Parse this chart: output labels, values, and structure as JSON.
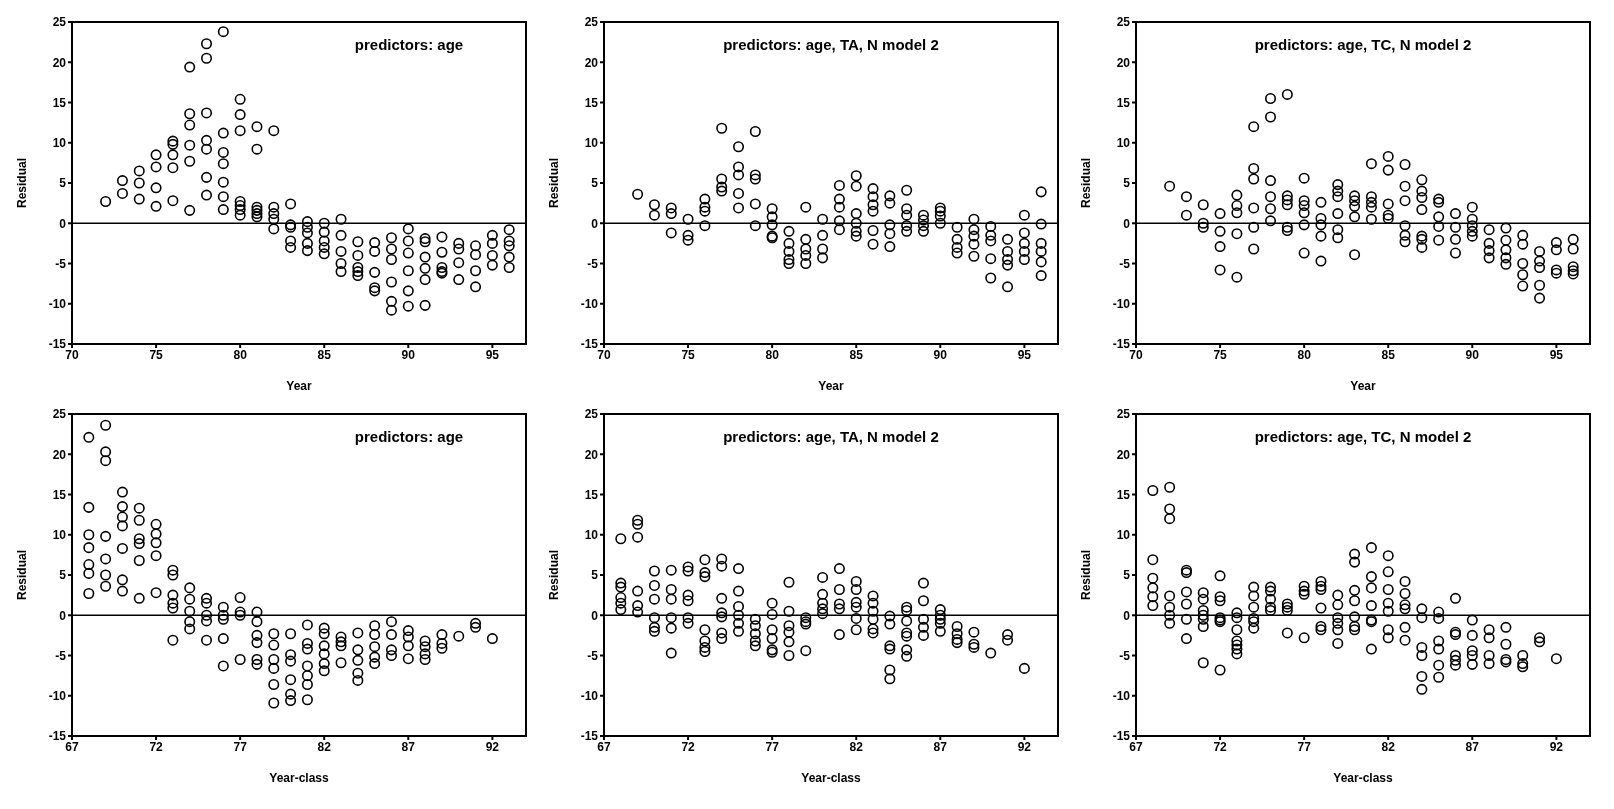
{
  "chart_data": [
    {
      "type": "scatter",
      "annotations": [
        "predictors: age"
      ],
      "xlabel": "Year",
      "ylabel": "Residual",
      "color": "#000000",
      "marker": "circle",
      "xlim": [
        70,
        97
      ],
      "xticks": [
        70,
        75,
        80,
        85,
        90,
        95
      ],
      "ylim": [
        -15,
        25
      ],
      "yticks": [
        -15,
        -10,
        -5,
        0,
        5,
        10,
        15,
        20,
        25
      ],
      "ref_lines": [
        {
          "axis": "y",
          "value": 0
        }
      ],
      "x": [
        72,
        73,
        73,
        74,
        74,
        74,
        75,
        75,
        75,
        75,
        76,
        76,
        76,
        76,
        76,
        77,
        77,
        77,
        77,
        77,
        77,
        78,
        78,
        78,
        78,
        78,
        78,
        78,
        79,
        79,
        79,
        79,
        79,
        79,
        79,
        80,
        80,
        80,
        80,
        80,
        80,
        80,
        81,
        81,
        81,
        81,
        81,
        81,
        82,
        82,
        82,
        82,
        82,
        83,
        83,
        83,
        83,
        83,
        84,
        84,
        84,
        84,
        84,
        85,
        85,
        85,
        85,
        85,
        86,
        86,
        86,
        86,
        86,
        87,
        87,
        87,
        87,
        87,
        88,
        88,
        88,
        88,
        88,
        89,
        89,
        89,
        89,
        89,
        89,
        90,
        90,
        90,
        90,
        90,
        90,
        91,
        91,
        91,
        91,
        91,
        91,
        92,
        92,
        92,
        92,
        92,
        93,
        93,
        93,
        93,
        94,
        94,
        94,
        94,
        95,
        95,
        95,
        95,
        96,
        96,
        96,
        96,
        96
      ],
      "values": [
        2.7,
        5.3,
        3.7,
        6.5,
        5,
        3,
        8.5,
        7,
        4.4,
        2.1,
        10.2,
        9.8,
        8.5,
        6.9,
        2.8,
        19.4,
        13.6,
        12.2,
        9.7,
        7.7,
        1.6,
        22.3,
        20.5,
        13.7,
        10.3,
        9.2,
        5.7,
        3.5,
        23.8,
        11.2,
        8.8,
        7.4,
        5.1,
        3.3,
        1.7,
        15.4,
        13.5,
        11.5,
        2.7,
        2.2,
        1.7,
        1,
        12,
        9.2,
        2,
        1.6,
        1.2,
        0.8,
        11.5,
        2,
        1.2,
        0.5,
        -0.7,
        2.4,
        -0.2,
        -0.5,
        -2.2,
        -3,
        0.2,
        -0.5,
        -1.2,
        -2.5,
        -3.4,
        0,
        -1.1,
        -2.2,
        -3,
        -3.8,
        0.5,
        -1.5,
        -3.5,
        -5,
        -6,
        -2.3,
        -4,
        -5.5,
        -6,
        -6.5,
        -2.4,
        -3.5,
        -6.1,
        -8,
        -8.4,
        -1.8,
        -3.2,
        -4.5,
        -7.3,
        -9.7,
        -10.8,
        -0.7,
        -2.2,
        -3.7,
        -5.9,
        -8.4,
        -10.3,
        -1.9,
        -2.3,
        -4.2,
        -5.6,
        -7,
        -10.2,
        -1.7,
        -3.6,
        -5.5,
        -6,
        -6.2,
        -2.5,
        -3.2,
        -4.9,
        -7,
        -2.8,
        -3.9,
        -5.9,
        -7.9,
        -1.5,
        -2.5,
        -4,
        -5.2,
        -0.8,
        -2.2,
        -2.8,
        -4.2,
        -5.5
      ]
    },
    {
      "type": "scatter",
      "annotations": [
        "predictors: age, TA, N  model 2"
      ],
      "xlabel": "Year",
      "ylabel": "Residual",
      "color": "#000000",
      "marker": "circle",
      "xlim": [
        70,
        97
      ],
      "xticks": [
        70,
        75,
        80,
        85,
        90,
        95
      ],
      "ylim": [
        -15,
        25
      ],
      "yticks": [
        -15,
        -10,
        -5,
        0,
        5,
        10,
        15,
        20,
        25
      ],
      "ref_lines": [
        {
          "axis": "y",
          "value": 0
        }
      ],
      "x": [
        72,
        73,
        73,
        74,
        74,
        74,
        75,
        75,
        75,
        76,
        76,
        76,
        76,
        77,
        77,
        77,
        77,
        78,
        78,
        78,
        78,
        78,
        79,
        79,
        79,
        79,
        79,
        80,
        80,
        80,
        80,
        80,
        81,
        81,
        81,
        81,
        81,
        82,
        82,
        82,
        82,
        82,
        83,
        83,
        83,
        83,
        84,
        84,
        84,
        84,
        84,
        85,
        85,
        85,
        85,
        85,
        85,
        86,
        86,
        86,
        86,
        86,
        86,
        87,
        87,
        87,
        87,
        87,
        88,
        88,
        88,
        88,
        88,
        89,
        89,
        89,
        89,
        90,
        90,
        90,
        90,
        91,
        91,
        91,
        91,
        92,
        92,
        92,
        92,
        92,
        93,
        93,
        93,
        93,
        93,
        94,
        94,
        94,
        94,
        94,
        95,
        95,
        95,
        95,
        95,
        96,
        96,
        96,
        96,
        96,
        96
      ],
      "values": [
        3.6,
        2.3,
        1,
        1.9,
        1.2,
        -1.2,
        0.5,
        -1.5,
        -2.1,
        3,
        2,
        1.5,
        -0.3,
        11.8,
        5.5,
        4.5,
        4,
        9.5,
        7,
        6,
        3.7,
        1.9,
        11.4,
        6,
        5.5,
        2.4,
        -0.3,
        1.8,
        0.8,
        -0.2,
        -1.6,
        -1.8,
        -1,
        -2.5,
        -3.5,
        -4.5,
        -5,
        2,
        -2,
        -3.2,
        -4,
        -5,
        0.5,
        -1.5,
        -3.2,
        -4.3,
        4.7,
        3,
        2,
        0.3,
        -0.8,
        5.9,
        4.6,
        1.2,
        0,
        -1,
        -1.6,
        4.3,
        3.3,
        2.3,
        1.5,
        -0.9,
        -2.6,
        3.4,
        2.5,
        -0.2,
        -1.3,
        -2.9,
        4.1,
        1.8,
        1,
        -0.3,
        -1,
        1,
        0.4,
        -0.3,
        -1,
        1.9,
        1.5,
        0.9,
        0,
        -0.5,
        -2,
        -3,
        -3.7,
        0.5,
        -0.8,
        -1.6,
        -2.6,
        -4.1,
        -0.4,
        -1.5,
        -2.2,
        -4.4,
        -6.8,
        -2,
        -3.5,
        -4.5,
        -5.2,
        -7.9,
        1,
        -1.2,
        -2.5,
        -3.5,
        -4.5,
        3.9,
        -0.1,
        -2.5,
        -3.5,
        -4.8,
        -6.5
      ]
    },
    {
      "type": "scatter",
      "annotations": [
        "predictors: age, TC, N  model 2"
      ],
      "xlabel": "Year",
      "ylabel": "Residual",
      "color": "#000000",
      "marker": "circle",
      "xlim": [
        70,
        97
      ],
      "xticks": [
        70,
        75,
        80,
        85,
        90,
        95
      ],
      "ylim": [
        -15,
        25
      ],
      "yticks": [
        -15,
        -10,
        -5,
        0,
        5,
        10,
        15,
        20,
        25
      ],
      "ref_lines": [
        {
          "axis": "y",
          "value": 0
        }
      ],
      "x": [
        72,
        73,
        73,
        74,
        74,
        74,
        75,
        75,
        75,
        75,
        76,
        76,
        76,
        76,
        76,
        77,
        77,
        77,
        77,
        77,
        77,
        78,
        78,
        78,
        78,
        78,
        78,
        79,
        79,
        79,
        79,
        79,
        79,
        80,
        80,
        80,
        80,
        80,
        80,
        81,
        81,
        81,
        81,
        81,
        82,
        82,
        82,
        82,
        82,
        82,
        83,
        83,
        83,
        83,
        83,
        84,
        84,
        84,
        84,
        84,
        85,
        85,
        85,
        85,
        85,
        86,
        86,
        86,
        86,
        86,
        86,
        87,
        87,
        87,
        87,
        87,
        87,
        87,
        88,
        88,
        88,
        88,
        88,
        89,
        89,
        89,
        89,
        90,
        90,
        90,
        90,
        90,
        91,
        91,
        91,
        91,
        92,
        92,
        92,
        92,
        92,
        93,
        93,
        93,
        93,
        93,
        94,
        94,
        94,
        94,
        94,
        95,
        95,
        95,
        95,
        96,
        96,
        96,
        96,
        96
      ],
      "values": [
        4.6,
        3.3,
        1,
        2.3,
        0,
        -0.5,
        1.2,
        -1,
        -2.9,
        -5.8,
        3.5,
        2.2,
        1.3,
        -1.3,
        -6.7,
        12,
        6.8,
        5.5,
        1.9,
        -0.5,
        -3.2,
        15.5,
        13.2,
        5.3,
        3.3,
        1.8,
        0.3,
        16,
        3.4,
        2.9,
        2.3,
        -0.5,
        -0.9,
        5.6,
        2.8,
        2.2,
        1.3,
        -0.2,
        -3.7,
        2.6,
        0.6,
        -0.2,
        -1.6,
        -4.7,
        4.8,
        4,
        3.3,
        1.2,
        -0.8,
        -1.8,
        3.4,
        2.8,
        2.1,
        0.8,
        -3.9,
        7.4,
        3.3,
        2.6,
        2,
        0.5,
        8.3,
        6.6,
        2.4,
        1,
        0.6,
        7.3,
        4.6,
        2.8,
        -0.3,
        -1.5,
        -2.3,
        5.4,
        4,
        3.2,
        1.7,
        -1.6,
        -2,
        -3,
        3,
        2.6,
        0.8,
        -0.4,
        -2.1,
        1.2,
        -0.5,
        -2,
        -3.7,
        2,
        0.5,
        -0.3,
        -1,
        -1.6,
        -0.8,
        -2.5,
        -3.4,
        -4.3,
        -0.6,
        -2.1,
        -3.3,
        -4.3,
        -5.1,
        -1.5,
        -2.6,
        -5,
        -6.4,
        -7.8,
        -3.5,
        -4.7,
        -5.5,
        -7.7,
        -9.3,
        -2.4,
        -3.3,
        -5.8,
        -6.2,
        -2,
        -3.2,
        -5.4,
        -5.9,
        -6.3
      ]
    },
    {
      "type": "scatter",
      "annotations": [
        "predictors: age"
      ],
      "xlabel": "Year-class",
      "ylabel": "Residual",
      "color": "#000000",
      "marker": "circle",
      "xlim": [
        67,
        94
      ],
      "xticks": [
        67,
        72,
        77,
        82,
        87,
        92
      ],
      "ylim": [
        -15,
        25
      ],
      "yticks": [
        -15,
        -10,
        -5,
        0,
        5,
        10,
        15,
        20,
        25
      ],
      "ref_lines": [
        {
          "axis": "y",
          "value": 0
        }
      ],
      "x": [
        68,
        68,
        68,
        68,
        68,
        68,
        68,
        69,
        69,
        69,
        69,
        69,
        69,
        69,
        70,
        70,
        70,
        70,
        70,
        70,
        70,
        71,
        71,
        71,
        71,
        71,
        71,
        72,
        72,
        72,
        72,
        72,
        73,
        73,
        73,
        73,
        73,
        73,
        74,
        74,
        74,
        74,
        74,
        75,
        75,
        75,
        75,
        75,
        76,
        76,
        76,
        76,
        76,
        77,
        77,
        77,
        77,
        78,
        78,
        78,
        78,
        78,
        78,
        79,
        79,
        79,
        79,
        79,
        79,
        80,
        80,
        80,
        80,
        80,
        80,
        81,
        81,
        81,
        81,
        81,
        81,
        81,
        82,
        82,
        82,
        82,
        82,
        82,
        83,
        83,
        83,
        83,
        84,
        84,
        84,
        84,
        84,
        85,
        85,
        85,
        85,
        85,
        86,
        86,
        86,
        86,
        87,
        87,
        87,
        87,
        88,
        88,
        88,
        88,
        89,
        89,
        89,
        90,
        91,
        91,
        92
      ],
      "values": [
        22.1,
        13.4,
        10,
        8.4,
        6.3,
        5.2,
        2.7,
        23.6,
        20.3,
        19.2,
        9.8,
        7,
        5,
        3.6,
        15.3,
        13.5,
        12.2,
        11.1,
        8.3,
        4.4,
        3,
        13.3,
        11.8,
        9.5,
        8.9,
        6.8,
        2.1,
        11.3,
        10.1,
        9,
        7.4,
        2.8,
        5.6,
        5,
        2.5,
        1.5,
        0.9,
        -3.1,
        3.4,
        2,
        0.5,
        -0.8,
        -1.7,
        2.1,
        1.5,
        0,
        -0.7,
        -3.1,
        1,
        0,
        -0.5,
        -2.9,
        -6.3,
        2.2,
        0.4,
        0,
        -5.5,
        0.4,
        -0.8,
        -2.5,
        -3.4,
        -5.5,
        -6.1,
        -2.3,
        -3.7,
        -5.5,
        -6.6,
        -8.6,
        -10.9,
        -2.3,
        -4.9,
        -5.7,
        -8,
        -9.8,
        -10.6,
        -1.2,
        -3.5,
        -4.2,
        -6.3,
        -7.5,
        -8.6,
        -10.5,
        -1.6,
        -2.3,
        -3.8,
        -4.8,
        -6,
        -6.9,
        -2.7,
        -3.3,
        -3.8,
        -5.9,
        -2.2,
        -4.3,
        -5.6,
        -7.2,
        -8.1,
        -1.3,
        -2.4,
        -3.9,
        -5.2,
        -6,
        -0.8,
        -2.4,
        -4.3,
        -5,
        -1.9,
        -2.7,
        -3.8,
        -5.4,
        -3.2,
        -3.9,
        -4.8,
        -5.5,
        -2.4,
        -3.5,
        -4.1,
        -2.6,
        -1,
        -1.5,
        -2.9
      ]
    },
    {
      "type": "scatter",
      "annotations": [
        "predictors: age, TA, N  model 2"
      ],
      "xlabel": "Year-class",
      "ylabel": "Residual",
      "color": "#000000",
      "marker": "circle",
      "xlim": [
        67,
        94
      ],
      "xticks": [
        67,
        72,
        77,
        82,
        87,
        92
      ],
      "ylim": [
        -15,
        25
      ],
      "yticks": [
        -15,
        -10,
        -5,
        0,
        5,
        10,
        15,
        20,
        25
      ],
      "ref_lines": [
        {
          "axis": "y",
          "value": 0
        }
      ],
      "x": [
        68,
        68,
        68,
        68,
        68,
        68,
        69,
        69,
        69,
        69,
        69,
        69,
        70,
        70,
        70,
        70,
        70,
        70,
        71,
        71,
        71,
        71,
        71,
        71,
        72,
        72,
        72,
        72,
        72,
        72,
        73,
        73,
        73,
        73,
        73,
        73,
        73,
        74,
        74,
        74,
        74,
        74,
        74,
        74,
        75,
        75,
        75,
        75,
        75,
        75,
        76,
        76,
        76,
        76,
        76,
        77,
        77,
        77,
        77,
        77,
        77,
        78,
        78,
        78,
        78,
        78,
        78,
        79,
        79,
        79,
        79,
        80,
        80,
        80,
        80,
        80,
        81,
        81,
        81,
        81,
        81,
        82,
        82,
        82,
        82,
        82,
        82,
        83,
        83,
        83,
        83,
        83,
        83,
        84,
        84,
        84,
        84,
        84,
        84,
        85,
        85,
        85,
        85,
        85,
        85,
        85,
        86,
        86,
        86,
        86,
        86,
        87,
        87,
        87,
        87,
        87,
        88,
        88,
        88,
        88,
        89,
        89,
        89,
        90,
        91,
        91,
        92
      ],
      "values": [
        9.5,
        4,
        3.5,
        2.2,
        1.5,
        0.7,
        11.8,
        11.3,
        9.7,
        3,
        1.2,
        0.4,
        5.5,
        3.7,
        2,
        -0.3,
        -1.5,
        -2,
        5.6,
        3.2,
        2,
        -0.3,
        -1.6,
        -4.7,
        6,
        5.5,
        2.5,
        1.8,
        -0.3,
        -1,
        6.9,
        5.3,
        4.8,
        -1.8,
        -3.2,
        -4,
        -4.5,
        7,
        6.1,
        2.1,
        0.3,
        -0.2,
        -2.2,
        -2.9,
        5.8,
        3,
        1.1,
        0,
        -1,
        -2,
        -0.5,
        -1.3,
        -2.3,
        -3.2,
        -3.8,
        1.5,
        0.1,
        -1.8,
        -2.9,
        -4.3,
        -4.6,
        4.1,
        0.5,
        -1.3,
        -2.1,
        -3.3,
        -5,
        -0.3,
        -0.8,
        -1.1,
        -4.4,
        4.7,
        2.6,
        1.5,
        0.8,
        0.2,
        5.8,
        3.2,
        1.4,
        0.8,
        -2.4,
        4.2,
        3.2,
        1.6,
        1,
        -0.4,
        -1.8,
        2.4,
        1.5,
        0.5,
        -0.5,
        -1.7,
        -2.2,
        -0.1,
        -1.1,
        -3.8,
        -4.2,
        -6.8,
        -7.9,
        1,
        0.6,
        -0.7,
        -2.2,
        -2.6,
        -4.3,
        -5.1,
        4,
        1.8,
        -0.5,
        -1.5,
        -2.5,
        0.7,
        0,
        -0.5,
        -1,
        -2,
        -1.4,
        -2.3,
        -3,
        -3.4,
        -2.1,
        -3.6,
        -4,
        -4.7,
        -2.4,
        -3.1,
        -6.6
      ]
    },
    {
      "type": "scatter",
      "annotations": [
        "predictors: age, TC, N  model 2"
      ],
      "xlabel": "Year-class",
      "ylabel": "Residual",
      "color": "#000000",
      "marker": "circle",
      "xlim": [
        67,
        94
      ],
      "xticks": [
        67,
        72,
        77,
        82,
        87,
        92
      ],
      "ylim": [
        -15,
        25
      ],
      "yticks": [
        -15,
        -10,
        -5,
        0,
        5,
        10,
        15,
        20,
        25
      ],
      "ref_lines": [
        {
          "axis": "y",
          "value": 0
        }
      ],
      "x": [
        68,
        68,
        68,
        68,
        68,
        68,
        69,
        69,
        69,
        69,
        69,
        69,
        69,
        70,
        70,
        70,
        70,
        70,
        70,
        71,
        71,
        71,
        71,
        71,
        71,
        71,
        72,
        72,
        72,
        72,
        72,
        72,
        72,
        73,
        73,
        73,
        73,
        73,
        73,
        73,
        74,
        74,
        74,
        74,
        74,
        74,
        75,
        75,
        75,
        75,
        75,
        76,
        76,
        76,
        76,
        77,
        77,
        77,
        77,
        78,
        78,
        78,
        78,
        78,
        78,
        79,
        79,
        79,
        79,
        79,
        79,
        80,
        80,
        80,
        80,
        80,
        80,
        80,
        81,
        81,
        81,
        81,
        81,
        81,
        81,
        82,
        82,
        82,
        82,
        82,
        82,
        82,
        83,
        83,
        83,
        83,
        83,
        83,
        84,
        84,
        84,
        84,
        84,
        84,
        85,
        85,
        85,
        85,
        85,
        85,
        86,
        86,
        86,
        86,
        86,
        86,
        87,
        87,
        87,
        87,
        87,
        88,
        88,
        88,
        88,
        89,
        89,
        89,
        89,
        90,
        90,
        90,
        91,
        91,
        92
      ],
      "values": [
        15.5,
        6.9,
        4.6,
        3.4,
        2.3,
        1.2,
        15.9,
        13.2,
        12,
        2.4,
        1,
        0,
        -1,
        5.6,
        5.3,
        2.9,
        1.4,
        -0.5,
        -2.9,
        2.8,
        2,
        0.6,
        0,
        -0.5,
        -1.4,
        -5.9,
        4.9,
        2.3,
        1.8,
        -0.3,
        -0.6,
        -0.8,
        -6.8,
        0.3,
        -0.3,
        -1.8,
        -3.2,
        -3.7,
        -4.2,
        -4.8,
        3.5,
        2.4,
        1,
        -0.4,
        -0.8,
        -1.6,
        3.5,
        3,
        2,
        1,
        0.6,
        1.4,
        1,
        0.6,
        -2.2,
        3.6,
        3,
        2.6,
        -2.8,
        4.2,
        3.6,
        3.2,
        0.9,
        -1.4,
        -1.8,
        2.5,
        1.3,
        -0.3,
        -1,
        -1.8,
        -3.5,
        7.6,
        6.6,
        3.1,
        1.8,
        -0.2,
        -1.4,
        -1.8,
        8.4,
        4.8,
        3.4,
        1.2,
        -0.6,
        -0.8,
        -4.2,
        7.4,
        5.4,
        3.2,
        1.5,
        0.5,
        -1.8,
        -2.8,
        4.2,
        2.7,
        1.3,
        0.8,
        -1.5,
        -3.1,
        0.8,
        -0.3,
        -4,
        -5,
        -7.6,
        -9.2,
        0.4,
        -0.4,
        -3.2,
        -4.2,
        -6.2,
        -7.7,
        2.1,
        -2.1,
        -2.4,
        -5,
        -5.6,
        -6.2,
        -0.6,
        -2.5,
        -4.4,
        -5,
        -6.1,
        -1.8,
        -2.8,
        -5,
        -6,
        -1.5,
        -3.6,
        -5.5,
        -5.8,
        -5,
        -6,
        -6.4,
        -2.8,
        -3.3,
        -5.4
      ]
    }
  ]
}
